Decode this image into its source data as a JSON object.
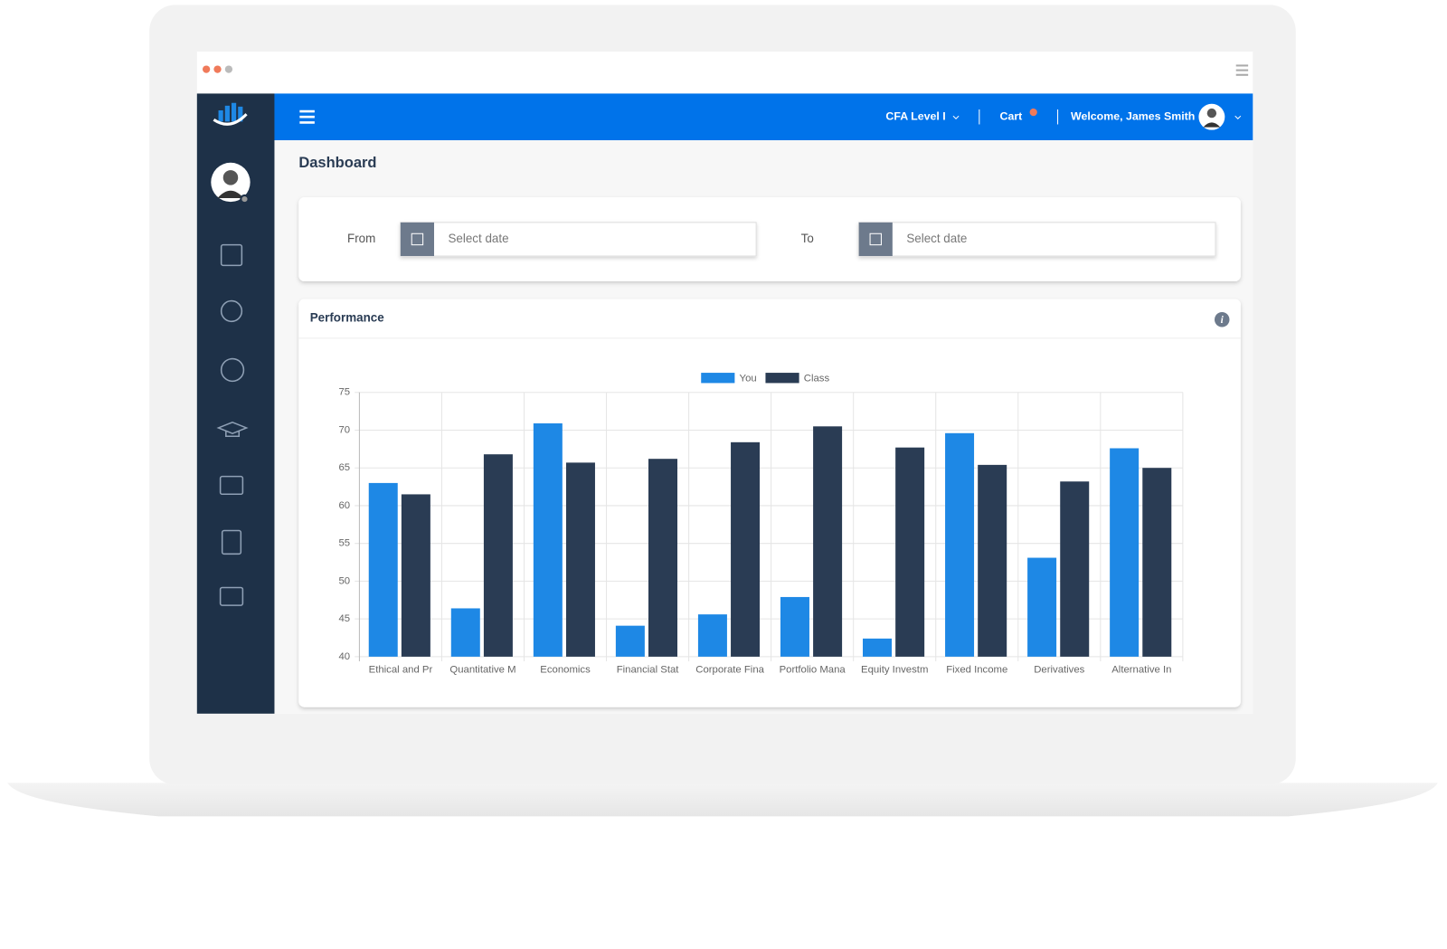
{
  "header": {
    "course": "CFA Level I",
    "cart": "Cart",
    "welcome": "Welcome, James Smith"
  },
  "page_title": "Dashboard",
  "filters": {
    "from_label": "From",
    "from_placeholder": "Select date",
    "to_label": "To",
    "to_placeholder": "Select date"
  },
  "panel_title": "Performance",
  "chart_data": {
    "type": "bar",
    "categories": [
      "Ethical and Pr",
      "Quantitative M",
      "Economics",
      "Financial Stat",
      "Corporate Fina",
      "Portfolio Mana",
      "Equity Investm",
      "Fixed Income",
      "Derivatives",
      "Alternative In"
    ],
    "series": [
      {
        "name": "You",
        "color": "#1e88e5",
        "values": [
          63,
          46.4,
          70.9,
          44.1,
          45.6,
          47.9,
          42.4,
          69.6,
          53.1,
          67.6
        ]
      },
      {
        "name": "Class",
        "color": "#2a3c54",
        "values": [
          61.5,
          66.8,
          65.7,
          66.2,
          68.4,
          70.5,
          67.7,
          65.4,
          63.2,
          65
        ]
      }
    ],
    "ylim": [
      40,
      75
    ],
    "yticks": [
      40,
      45,
      50,
      55,
      60,
      65,
      70,
      75
    ],
    "grid": true,
    "legend": "top"
  }
}
